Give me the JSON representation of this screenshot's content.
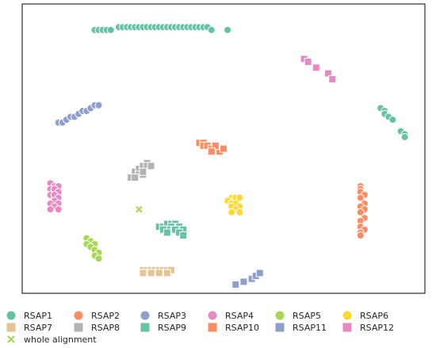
{
  "chart_data": {
    "type": "scatter",
    "title": "",
    "xlabel": "",
    "ylabel": "",
    "xlim": [
      0,
      100
    ],
    "ylim": [
      0,
      100
    ],
    "grid": false,
    "axes_ticks": false,
    "legend_placement": "bottom",
    "series": [
      {
        "name": "RSAP1",
        "marker": "circle",
        "color": "#66c2a5",
        "points": [
          [
            18,
            91
          ],
          [
            19,
            91
          ],
          [
            20,
            91
          ],
          [
            21,
            91
          ],
          [
            22,
            91
          ],
          [
            24,
            92
          ],
          [
            25,
            92
          ],
          [
            26,
            92
          ],
          [
            27,
            92
          ],
          [
            28,
            92
          ],
          [
            29,
            92
          ],
          [
            30,
            92
          ],
          [
            31,
            92
          ],
          [
            32,
            92
          ],
          [
            33,
            92
          ],
          [
            34,
            92
          ],
          [
            35,
            92
          ],
          [
            36,
            92
          ],
          [
            37,
            92
          ],
          [
            38,
            92
          ],
          [
            39,
            92
          ],
          [
            40,
            92
          ],
          [
            41,
            92
          ],
          [
            42,
            92
          ],
          [
            43,
            92
          ],
          [
            44,
            92
          ],
          [
            45,
            92
          ],
          [
            46,
            92
          ],
          [
            47,
            91
          ],
          [
            51,
            91
          ],
          [
            89,
            64
          ],
          [
            90,
            63
          ],
          [
            90,
            62
          ],
          [
            91,
            61
          ],
          [
            92,
            60
          ],
          [
            94,
            56
          ],
          [
            95,
            55
          ],
          [
            95,
            54
          ]
        ]
      },
      {
        "name": "RSAP2",
        "marker": "circle",
        "color": "#fc8d62",
        "points": [
          [
            84,
            37
          ],
          [
            84,
            36
          ],
          [
            84,
            35
          ],
          [
            85,
            34
          ],
          [
            84,
            33
          ],
          [
            85,
            31
          ],
          [
            84,
            30
          ],
          [
            85,
            29
          ],
          [
            84,
            28
          ],
          [
            85,
            26
          ],
          [
            84,
            25
          ],
          [
            84,
            23
          ],
          [
            85,
            22
          ],
          [
            84,
            21
          ],
          [
            84,
            20
          ]
        ]
      },
      {
        "name": "RSAP3",
        "marker": "circle",
        "color": "#8da0cb",
        "points": [
          [
            9,
            59
          ],
          [
            10,
            59
          ],
          [
            11,
            60
          ],
          [
            12,
            61
          ],
          [
            13,
            61
          ],
          [
            14,
            62
          ],
          [
            15,
            63
          ],
          [
            16,
            63
          ],
          [
            17,
            64
          ],
          [
            18,
            65
          ],
          [
            19,
            65
          ]
        ]
      },
      {
        "name": "RSAP4",
        "marker": "circle",
        "color": "#e78ac3",
        "points": [
          [
            7,
            38
          ],
          [
            8,
            37
          ],
          [
            9,
            37
          ],
          [
            7,
            36
          ],
          [
            8,
            36
          ],
          [
            9,
            35
          ],
          [
            7,
            34
          ],
          [
            8,
            34
          ],
          [
            9,
            33
          ],
          [
            8,
            32
          ],
          [
            7,
            31
          ],
          [
            9,
            31
          ],
          [
            8,
            30
          ],
          [
            7,
            29
          ],
          [
            9,
            29
          ]
        ]
      },
      {
        "name": "RSAP5",
        "marker": "circle",
        "color": "#a6d854",
        "points": [
          [
            16,
            19
          ],
          [
            17,
            18
          ],
          [
            16,
            17
          ],
          [
            18,
            17
          ],
          [
            17,
            16
          ],
          [
            18,
            15
          ],
          [
            19,
            14
          ],
          [
            18,
            13
          ],
          [
            19,
            12
          ]
        ]
      },
      {
        "name": "RSAP6",
        "marker": "circle",
        "color": "#ffd92f",
        "points": [
          [
            52,
            33
          ],
          [
            53,
            33
          ],
          [
            54,
            33
          ],
          [
            51,
            32
          ],
          [
            52,
            31
          ],
          [
            53,
            31
          ],
          [
            52,
            30
          ],
          [
            54,
            30
          ],
          [
            53,
            29
          ],
          [
            52,
            28
          ],
          [
            54,
            28
          ]
        ]
      },
      {
        "name": "RSAP7",
        "marker": "square",
        "color": "#e5c494",
        "points": [
          [
            30,
            8
          ],
          [
            31,
            8
          ],
          [
            32,
            8
          ],
          [
            33,
            8
          ],
          [
            34,
            8
          ],
          [
            35,
            8
          ],
          [
            36,
            8
          ],
          [
            37,
            8
          ],
          [
            30,
            7
          ],
          [
            32,
            7
          ],
          [
            34,
            7
          ],
          [
            36,
            7
          ]
        ]
      },
      {
        "name": "RSAP8",
        "marker": "square",
        "color": "#b3b3b3",
        "points": [
          [
            28,
            42
          ],
          [
            29,
            43
          ],
          [
            30,
            43
          ],
          [
            30,
            44
          ],
          [
            31,
            45
          ],
          [
            31,
            44
          ],
          [
            29,
            41
          ],
          [
            30,
            41
          ],
          [
            27,
            40
          ],
          [
            28,
            40
          ],
          [
            30,
            42
          ],
          [
            32,
            44
          ]
        ]
      },
      {
        "name": "RSAP9",
        "marker": "square",
        "color": "#66c2a5",
        "points": [
          [
            34,
            23
          ],
          [
            35,
            23
          ],
          [
            36,
            24
          ],
          [
            37,
            24
          ],
          [
            38,
            24
          ],
          [
            39,
            23
          ],
          [
            40,
            22
          ],
          [
            37,
            23
          ],
          [
            36,
            22
          ],
          [
            35,
            22
          ],
          [
            38,
            22
          ],
          [
            39,
            21
          ],
          [
            40,
            20
          ],
          [
            36,
            21
          ]
        ]
      },
      {
        "name": "RSAP10",
        "marker": "square",
        "color": "#fc8d62",
        "points": [
          [
            44,
            52
          ],
          [
            45,
            52
          ],
          [
            45,
            51
          ],
          [
            46,
            51
          ],
          [
            47,
            50
          ],
          [
            48,
            50
          ],
          [
            49,
            49
          ],
          [
            50,
            50
          ],
          [
            48,
            51
          ],
          [
            47,
            49
          ]
        ]
      },
      {
        "name": "RSAP11",
        "marker": "square",
        "color": "#8da0cb",
        "points": [
          [
            53,
            3
          ],
          [
            55,
            4
          ],
          [
            57,
            5
          ],
          [
            58,
            6
          ],
          [
            59,
            7
          ]
        ]
      },
      {
        "name": "RSAP12",
        "marker": "square",
        "color": "#e78ac3",
        "points": [
          [
            70,
            81
          ],
          [
            71,
            80
          ],
          [
            73,
            78
          ],
          [
            76,
            76
          ],
          [
            77,
            74
          ]
        ]
      },
      {
        "name": "whole alignment",
        "marker": "x",
        "color": "#a6d854",
        "points": [
          [
            29,
            29
          ]
        ]
      }
    ],
    "legend": {
      "columns": 6,
      "entries": [
        "RSAP1",
        "RSAP2",
        "RSAP3",
        "RSAP4",
        "RSAP5",
        "RSAP6",
        "RSAP7",
        "RSAP8",
        "RSAP9",
        "RSAP10",
        "RSAP11",
        "RSAP12",
        "whole alignment"
      ]
    }
  }
}
